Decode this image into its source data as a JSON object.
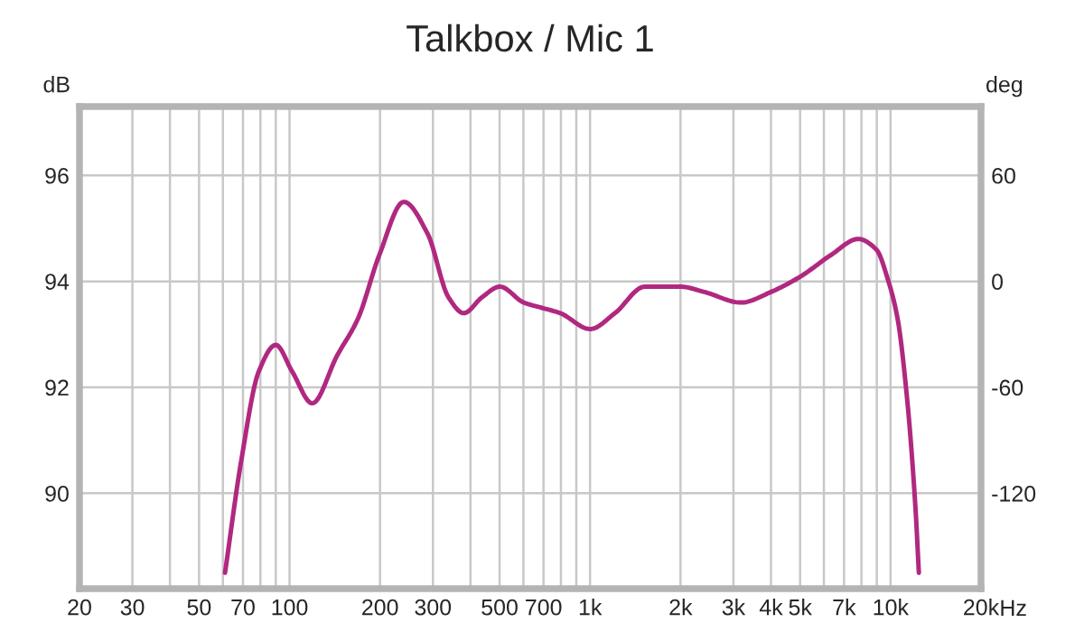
{
  "chart_data": {
    "type": "line",
    "title": "Talkbox / Mic 1",
    "ylabel": "dB",
    "y2label": "deg",
    "log": "x",
    "grid": true,
    "legend": false,
    "marker": "none",
    "line_style": "solid",
    "xlim": [
      20,
      20000
    ],
    "ylim": [
      88.2,
      97.3
    ],
    "y2lim": [
      -174,
      99
    ],
    "xticks": [
      20,
      30,
      {
        "value": 40,
        "label": null
      },
      50,
      {
        "value": 60,
        "label": null
      },
      70,
      {
        "value": 80,
        "label": null
      },
      {
        "value": 90,
        "label": null
      },
      100,
      200,
      300,
      {
        "value": 400,
        "label": null
      },
      500,
      {
        "value": 600,
        "label": null
      },
      700,
      {
        "value": 800,
        "label": null
      },
      {
        "value": 900,
        "label": null
      },
      {
        "value": 1000,
        "label": "1k"
      },
      {
        "value": 2000,
        "label": "2k"
      },
      {
        "value": 3000,
        "label": "3k"
      },
      {
        "value": 4000,
        "label": "4k"
      },
      {
        "value": 5000,
        "label": "5k"
      },
      {
        "value": 6000,
        "label": null
      },
      {
        "value": 7000,
        "label": "7k"
      },
      {
        "value": 8000,
        "label": null
      },
      {
        "value": 9000,
        "label": null
      },
      {
        "value": 10000,
        "label": "10k"
      },
      {
        "value": 20000,
        "label": "20k"
      }
    ],
    "xlabel": "Hz",
    "yticks": [
      90,
      92,
      94,
      96
    ],
    "y2ticks": [
      -120,
      -60,
      0,
      60
    ],
    "series": [
      {
        "color": "#b0287f",
        "x": [
          61,
          69,
          79,
          90,
          102,
          119,
          144,
          169,
          199,
          240,
          288,
          338,
          380,
          437,
          501,
          602,
          692,
          796,
          1000,
          1210,
          1520,
          2000,
          2400,
          3180,
          4000,
          5040,
          6340,
          7810,
          8970,
          9840,
          10550,
          11300,
          12110,
          12420
        ],
        "values": [
          88.5,
          90.6,
          92.3,
          92.8,
          92.3,
          91.7,
          92.6,
          93.3,
          94.5,
          95.5,
          94.9,
          93.7,
          93.4,
          93.7,
          93.9,
          93.6,
          93.5,
          93.4,
          93.1,
          93.4,
          93.9,
          93.9,
          93.8,
          93.6,
          93.8,
          94.1,
          94.5,
          94.8,
          94.6,
          94.0,
          93.3,
          91.9,
          89.7,
          88.5
        ]
      }
    ]
  }
}
